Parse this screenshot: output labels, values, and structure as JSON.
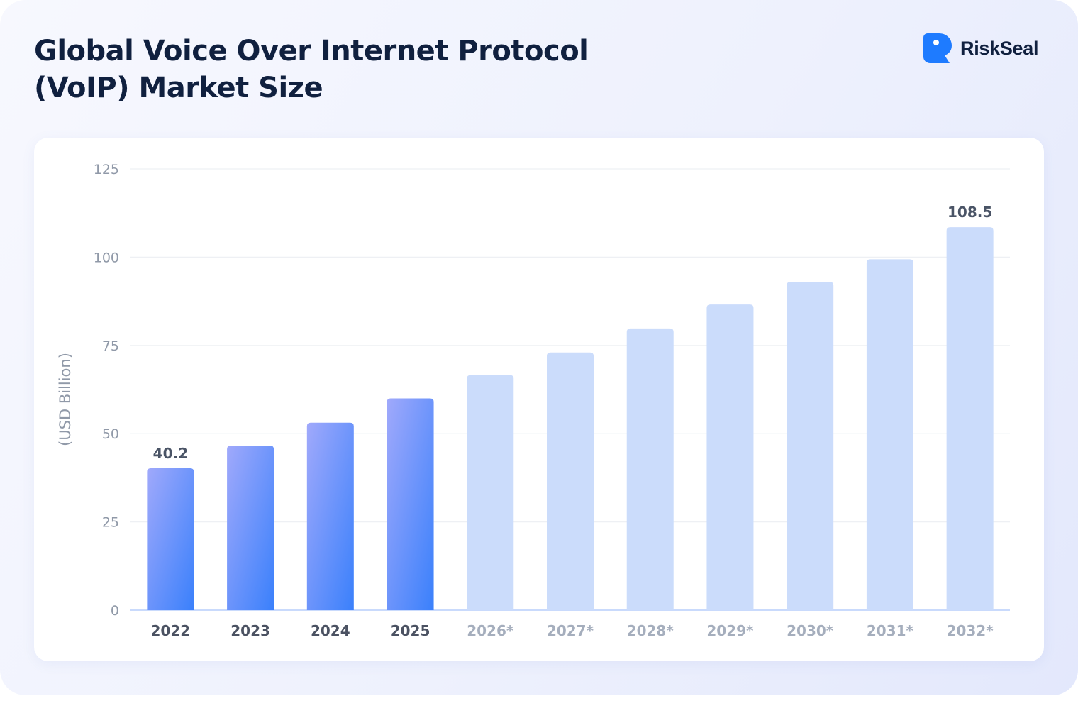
{
  "title": {
    "line1": "Global Voice Over Internet Protocol",
    "line2": "(VoIP) Market Size"
  },
  "brand": {
    "name": "RiskSeal",
    "logo_icon": "riskseal-logo-icon",
    "color": "#1e7bff"
  },
  "chart_data": {
    "type": "bar",
    "title": "Global Voice Over Internet Protocol (VoIP) Market Size",
    "xlabel": "",
    "ylabel": "(USD Billion)",
    "ylim": [
      0,
      125
    ],
    "yticks": [
      0,
      25,
      50,
      75,
      100,
      125
    ],
    "grid": true,
    "categories": [
      "2022",
      "2023",
      "2024",
      "2025",
      "2026*",
      "2027*",
      "2028*",
      "2029*",
      "2030*",
      "2031*",
      "2032*"
    ],
    "values": [
      40.2,
      46.6,
      53.1,
      60.0,
      66.6,
      73.0,
      79.8,
      86.6,
      93.0,
      99.4,
      108.5
    ],
    "projected": [
      false,
      false,
      false,
      false,
      true,
      true,
      true,
      true,
      true,
      true,
      true
    ],
    "data_labels": [
      {
        "category": "2022",
        "text": "40.2"
      },
      {
        "category": "2032*",
        "text": "108.5"
      }
    ],
    "colors": {
      "actual_top": "#a0a9fb",
      "actual_bottom": "#3a80fb",
      "projected": "#cbdcfb",
      "axis_text": "#9099a8",
      "category_actual": "#4b5262",
      "category_projected": "#a5aebd",
      "label": "#4a5466",
      "grid": "#eef0f4",
      "baseline": "#c9dafc"
    }
  }
}
